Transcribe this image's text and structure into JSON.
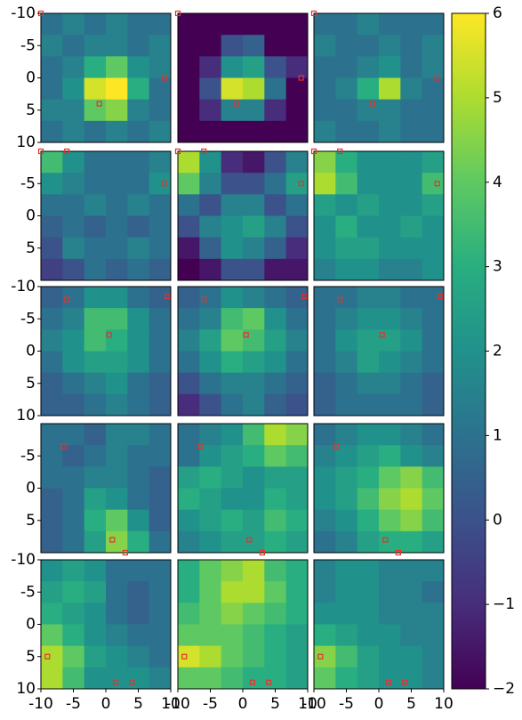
{
  "chart_data": {
    "type": "heatmap",
    "colormap": "viridis",
    "xlim": [
      -10,
      10
    ],
    "ylim": [
      -10,
      10
    ],
    "clim": [
      -2,
      6
    ],
    "cticks": [
      {
        "value": -2,
        "label": "−2"
      },
      {
        "value": -1,
        "label": "−1"
      },
      0,
      1,
      2,
      3,
      4,
      5,
      6
    ],
    "marker_color": "#e8312a",
    "panels": [
      {
        "yticks": [
          -10,
          -5,
          0,
          5,
          10
        ],
        "markers": {
          "x": [
            -10,
            -1,
            9
          ],
          "y": [
            -10,
            4,
            0
          ]
        },
        "values": [
          [
            1,
            1.5,
            1,
            1.5,
            1,
            1
          ],
          [
            1.5,
            1,
            1.5,
            1.5,
            1,
            1.5
          ],
          [
            1,
            1.5,
            3,
            4,
            2,
            1.5
          ],
          [
            1,
            2,
            5.5,
            6,
            3,
            1
          ],
          [
            1.5,
            1.5,
            4,
            4.5,
            1.5,
            1
          ],
          [
            1,
            1.5,
            1,
            1.5,
            1,
            1.5
          ]
        ]
      },
      {
        "markers": {
          "x": [
            -10,
            -1,
            9
          ],
          "y": [
            -10,
            4,
            0
          ]
        },
        "values": [
          [
            -2,
            -2,
            -2,
            -2,
            -2,
            -2
          ],
          [
            -2,
            -2,
            0,
            0.5,
            -2,
            -2
          ],
          [
            -2,
            -1,
            2,
            2.5,
            0,
            -1
          ],
          [
            -2,
            0,
            5.5,
            5,
            1,
            -2
          ],
          [
            -2,
            -1,
            1.5,
            1.5,
            -1,
            -2
          ],
          [
            -2,
            -2,
            -2,
            -2,
            -2,
            -2
          ]
        ]
      },
      {
        "markers": {
          "x": [
            -10,
            -1,
            9
          ],
          "y": [
            -10,
            4,
            0
          ]
        },
        "values": [
          [
            1,
            1,
            1.5,
            1,
            1,
            1
          ],
          [
            1.5,
            1,
            1,
            1.5,
            1,
            1.5
          ],
          [
            1,
            1,
            1.5,
            2,
            1,
            1.5
          ],
          [
            1,
            1.5,
            3,
            5,
            1.5,
            1
          ],
          [
            1,
            1,
            1.5,
            1.5,
            1,
            1
          ],
          [
            1.5,
            1,
            1,
            1.5,
            1,
            1
          ]
        ]
      },
      {
        "yticks": [
          -5,
          0,
          5
        ],
        "markers": {
          "x": [
            -10,
            -6,
            9
          ],
          "y": [
            -10,
            -10,
            -5
          ]
        },
        "values": [
          [
            3.5,
            2,
            1,
            1,
            1,
            1.5
          ],
          [
            2,
            1.5,
            1,
            1,
            1,
            2
          ],
          [
            1,
            1,
            1.5,
            1,
            1.5,
            1
          ],
          [
            0.5,
            1,
            0.5,
            1,
            0.5,
            1
          ],
          [
            0,
            1.5,
            1,
            1,
            1.5,
            1
          ],
          [
            -0.5,
            0,
            1,
            0.5,
            1,
            0.5
          ]
        ]
      },
      {
        "markers": {
          "x": [
            -10,
            -6,
            9
          ],
          "y": [
            -10,
            -10,
            -5
          ]
        },
        "values": [
          [
            5,
            2,
            -1,
            -1.5,
            0,
            1.5
          ],
          [
            4,
            1.5,
            0,
            0,
            1,
            2.5
          ],
          [
            1,
            0,
            1.5,
            1.5,
            0,
            1
          ],
          [
            0,
            1.5,
            2,
            2.5,
            1.5,
            0
          ],
          [
            -1.5,
            0.5,
            2,
            1.5,
            0.5,
            -1
          ],
          [
            -2,
            -1.5,
            0,
            0,
            -1.5,
            -1.5
          ]
        ]
      },
      {
        "markers": {
          "x": [
            -10,
            -6,
            9
          ],
          "y": [
            -10,
            -10,
            -5
          ]
        },
        "values": [
          [
            4.5,
            3,
            2,
            2,
            2,
            2.5
          ],
          [
            5,
            3.5,
            2,
            2,
            2,
            3.5
          ],
          [
            2.5,
            2,
            2.5,
            2,
            2,
            2.5
          ],
          [
            2,
            3,
            2,
            2,
            2.5,
            2
          ],
          [
            2,
            2.5,
            2.5,
            2,
            2,
            2
          ],
          [
            1.5,
            2,
            2,
            1.5,
            1.5,
            2
          ]
        ]
      },
      {
        "yticks": [
          -10,
          -5,
          0,
          5,
          10
        ],
        "markers": {
          "x": [
            -6,
            0.5,
            9.5
          ],
          "y": [
            -8,
            -2.5,
            -8.5
          ]
        },
        "values": [
          [
            0.5,
            1,
            2,
            2,
            1,
            0.5
          ],
          [
            1,
            1.5,
            3.5,
            3.5,
            2,
            1
          ],
          [
            1.5,
            2,
            3.5,
            3,
            2,
            1
          ],
          [
            1,
            2,
            2.5,
            2.5,
            2,
            1
          ],
          [
            0.5,
            1,
            1.5,
            2,
            1,
            0.5
          ],
          [
            0.5,
            0.5,
            1,
            1.5,
            1,
            0.5
          ]
        ]
      },
      {
        "markers": {
          "x": [
            -6,
            0.5,
            9.5
          ],
          "y": [
            -8,
            -2.5,
            -8.5
          ]
        },
        "values": [
          [
            0.5,
            1,
            2,
            1.5,
            1,
            0.5
          ],
          [
            1,
            1.5,
            3.5,
            4,
            2,
            1
          ],
          [
            1.5,
            2.5,
            4,
            3.5,
            2.5,
            1.5
          ],
          [
            1,
            2,
            3,
            2.5,
            2,
            1
          ],
          [
            0,
            1,
            1.5,
            1.5,
            1,
            0.5
          ],
          [
            -1,
            0,
            1,
            1.5,
            0.5,
            0
          ]
        ]
      },
      {
        "markers": {
          "x": [
            -6,
            0.5,
            9.5
          ],
          "y": [
            -8,
            -2.5,
            -8.5
          ]
        },
        "values": [
          [
            1,
            1,
            1.5,
            1.5,
            1,
            1
          ],
          [
            1,
            1.5,
            2,
            2,
            1.5,
            1
          ],
          [
            1,
            2,
            2.5,
            2.5,
            2,
            1
          ],
          [
            1,
            1.5,
            2.5,
            2,
            1.5,
            1
          ],
          [
            0.5,
            1,
            1.5,
            1.5,
            1,
            0.5
          ],
          [
            0.5,
            1,
            1,
            1,
            1,
            0.5
          ]
        ]
      },
      {
        "yticks": [
          -5,
          0,
          5
        ],
        "markers": {
          "x": [
            -6.5,
            1,
            3
          ],
          "y": [
            -6.5,
            8,
            10
          ]
        },
        "values": [
          [
            1,
            1,
            0.5,
            1.5,
            1.5,
            1
          ],
          [
            1,
            0.5,
            1,
            1.5,
            1,
            1
          ],
          [
            1,
            1,
            1.5,
            1.5,
            1,
            0.5
          ],
          [
            0.5,
            1,
            2.5,
            2,
            1,
            0.5
          ],
          [
            0.5,
            1,
            3,
            4,
            2,
            0.5
          ],
          [
            0.5,
            1,
            2.5,
            4.5,
            3,
            1
          ]
        ]
      },
      {
        "markers": {
          "x": [
            -6.5,
            1,
            3
          ],
          "y": [
            -6.5,
            8,
            10
          ]
        },
        "values": [
          [
            1,
            1.5,
            2,
            3.5,
            5,
            4.5
          ],
          [
            1,
            2,
            2.5,
            3,
            4,
            3.5
          ],
          [
            2.5,
            3,
            2.5,
            2,
            2.5,
            2.5
          ],
          [
            3,
            2.5,
            2,
            2,
            3,
            2.5
          ],
          [
            2,
            2.5,
            3,
            2.5,
            3.5,
            3
          ],
          [
            1.5,
            2,
            2.5,
            2.5,
            3,
            2.5
          ]
        ]
      },
      {
        "markers": {
          "x": [
            -6.5,
            1,
            3
          ],
          "y": [
            -6.5,
            8,
            10
          ]
        },
        "values": [
          [
            1,
            1.5,
            2,
            2,
            1.5,
            1
          ],
          [
            1.5,
            2,
            2.5,
            3,
            2,
            1.5
          ],
          [
            2,
            2.5,
            3,
            4,
            4.5,
            3.5
          ],
          [
            2,
            2.5,
            3.5,
            4.5,
            5,
            4
          ],
          [
            1.5,
            2,
            3,
            4,
            4.5,
            3.5
          ],
          [
            1,
            1.5,
            2.5,
            3,
            3,
            2.5
          ]
        ]
      },
      {
        "yticks": [
          -10,
          -5,
          0,
          5,
          10
        ],
        "xticks": [
          -10,
          -5,
          0,
          5,
          10
        ],
        "markers": {
          "x": [
            -9,
            1.5,
            4
          ],
          "y": [
            5,
            9,
            9
          ]
        },
        "values": [
          [
            2,
            2.5,
            2,
            1,
            1,
            1
          ],
          [
            2.5,
            3,
            2.5,
            1,
            0.5,
            1
          ],
          [
            3,
            2.5,
            2,
            1,
            0.5,
            1
          ],
          [
            4,
            3,
            2,
            1.5,
            1,
            1
          ],
          [
            5,
            4,
            2.5,
            2,
            1.5,
            1
          ],
          [
            5,
            3.5,
            2,
            2,
            2,
            1.5
          ]
        ]
      },
      {
        "xticks": [
          -10,
          -5,
          0,
          5,
          10
        ],
        "markers": {
          "x": [
            -9,
            1.5,
            4
          ],
          "y": [
            5,
            9,
            9
          ]
        },
        "values": [
          [
            3,
            4,
            4.5,
            5,
            3.5,
            3
          ],
          [
            3,
            4,
            5,
            5,
            4,
            3
          ],
          [
            3.5,
            4,
            4.5,
            4,
            3.5,
            3
          ],
          [
            4,
            4,
            4,
            3.5,
            3,
            2.5
          ],
          [
            5.5,
            5,
            4,
            3.5,
            3,
            2.5
          ],
          [
            4,
            4,
            3.5,
            3,
            3,
            2.5
          ]
        ]
      },
      {
        "xticks": [
          -10,
          -5,
          0,
          5,
          10
        ],
        "markers": {
          "x": [
            -9,
            1.5,
            4
          ],
          "y": [
            5,
            9,
            9
          ]
        },
        "values": [
          [
            1.5,
            2,
            2,
            1.5,
            1.5,
            1.5
          ],
          [
            1.5,
            2,
            2,
            1.5,
            1.5,
            1
          ],
          [
            2,
            2,
            2,
            1.5,
            1.5,
            1.5
          ],
          [
            3,
            2.5,
            2,
            2,
            1.5,
            1.5
          ],
          [
            4.5,
            3.5,
            2.5,
            2,
            2,
            1.5
          ],
          [
            4,
            3,
            2.5,
            2,
            2,
            1.5
          ]
        ]
      }
    ]
  }
}
